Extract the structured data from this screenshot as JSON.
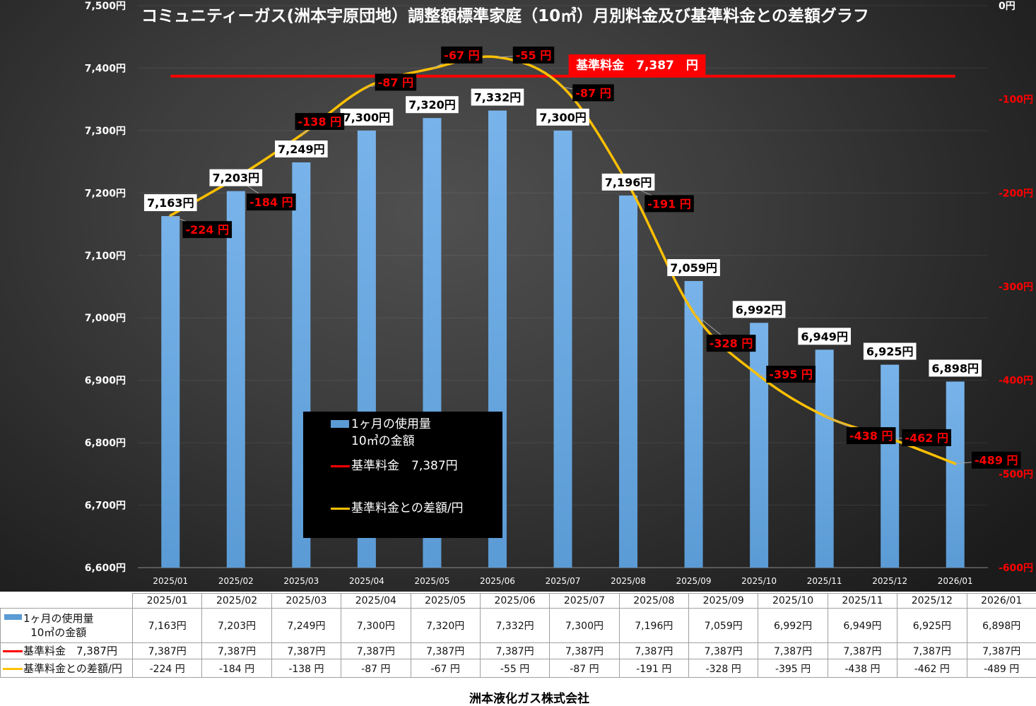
{
  "chart_data": {
    "type": "bar",
    "title": "コミュニティーガス(洲本宇原団地）調整額標準家庭（10㎥）月別料金及び基準料金との差額グラフ",
    "categories": [
      "2025/01",
      "2025/02",
      "2025/03",
      "2025/04",
      "2025/05",
      "2025/06",
      "2025/07",
      "2025/08",
      "2025/09",
      "2025/10",
      "2025/11",
      "2025/12",
      "2026/01"
    ],
    "ylim": [
      6600,
      7500
    ],
    "yticks": [
      7500,
      7400,
      7300,
      7200,
      7100,
      7000,
      6900,
      6800,
      6700,
      6600
    ],
    "yticklabels": [
      "7,500円",
      "7,400円",
      "7,300円",
      "7,200円",
      "7,100円",
      "7,000円",
      "6,900円",
      "6,800円",
      "6,700円",
      "6,600円"
    ],
    "y2lim": [
      -600,
      0
    ],
    "y2ticks": [
      0,
      -100,
      -200,
      -300,
      -400,
      -500,
      -600
    ],
    "y2ticklabels": [
      "0円",
      "-100円",
      "-200円",
      "-300円",
      "-400円",
      "-500円",
      "-600円"
    ],
    "grid": true,
    "legend_position": "lower-left",
    "colors": {
      "axis_text": "#ffffff",
      "negative_axis_text": "#ff0000",
      "bar_label_box": "#ffffff",
      "bar_label_text": "#000000",
      "diff_label_box": "#000000",
      "diff_label_text": "#ff0000"
    },
    "series": [
      {
        "name": "1ヶ月の使用量\n10㎥の金額",
        "type": "bar",
        "axis": "left",
        "color": "#5b9bd5",
        "values": [
          7163,
          7203,
          7249,
          7300,
          7320,
          7332,
          7300,
          7196,
          7059,
          6992,
          6949,
          6925,
          6898
        ],
        "labels": [
          "7,163円",
          "7,203円",
          "7,249円",
          "7,300円",
          "7,320円",
          "7,332円",
          "7,300円",
          "7,196円",
          "7,059円",
          "6,992円",
          "6,949円",
          "6,925円",
          "6,898円"
        ]
      },
      {
        "name": "基準料金　7,387円",
        "type": "line",
        "axis": "left",
        "color": "#ff0000",
        "values": [
          7387,
          7387,
          7387,
          7387,
          7387,
          7387,
          7387,
          7387,
          7387,
          7387,
          7387,
          7387,
          7387
        ],
        "labels": [
          "7,387円",
          "7,387円",
          "7,387円",
          "7,387円",
          "7,387円",
          "7,387円",
          "7,387円",
          "7,387円",
          "7,387円",
          "7,387円",
          "7,387円",
          "7,387円",
          "7,387円"
        ],
        "annotation": "基準料金　7,387　円"
      },
      {
        "name": "基準料金との差額/円",
        "type": "line",
        "axis": "right",
        "smooth": true,
        "color": "#ffc000",
        "values": [
          -224,
          -184,
          -138,
          -87,
          -67,
          -55,
          -87,
          -191,
          -328,
          -395,
          -438,
          -462,
          -489
        ],
        "labels": [
          "-224 円",
          "-184 円",
          "-138 円",
          "-87 円",
          "-67 円",
          "-55 円",
          "-87 円",
          "-191 円",
          "-328 円",
          "-395 円",
          "-438 円",
          "-462 円",
          "-489 円"
        ]
      }
    ]
  },
  "footer": {
    "company": "洲本液化ガス株式会社"
  }
}
